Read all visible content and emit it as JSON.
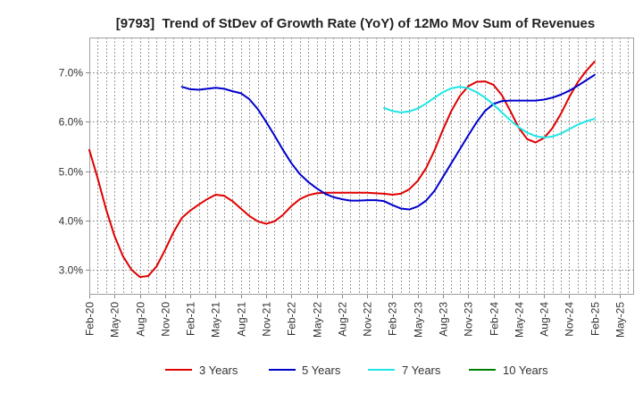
{
  "chart_data": {
    "type": "line",
    "title": "[9793]  Trend of StDev of Growth Rate (YoY) of 12Mo Mov Sum of Revenues",
    "xlabel": "",
    "ylabel": "",
    "xlim": [
      0,
      64.7
    ],
    "ylim": [
      2.49,
      7.71
    ],
    "grid": true,
    "legend_position": "bottom",
    "x_ticks": [
      {
        "month": 0,
        "label": "Feb-20"
      },
      {
        "month": 3,
        "label": "May-20"
      },
      {
        "month": 6,
        "label": "Aug-20"
      },
      {
        "month": 9,
        "label": "Nov-20"
      },
      {
        "month": 12,
        "label": "Feb-21"
      },
      {
        "month": 15,
        "label": "May-21"
      },
      {
        "month": 18,
        "label": "Aug-21"
      },
      {
        "month": 21,
        "label": "Nov-21"
      },
      {
        "month": 24,
        "label": "Feb-22"
      },
      {
        "month": 27,
        "label": "May-22"
      },
      {
        "month": 30,
        "label": "Aug-22"
      },
      {
        "month": 33,
        "label": "Nov-22"
      },
      {
        "month": 36,
        "label": "Feb-23"
      },
      {
        "month": 39,
        "label": "May-23"
      },
      {
        "month": 42,
        "label": "Aug-23"
      },
      {
        "month": 45,
        "label": "Nov-23"
      },
      {
        "month": 48,
        "label": "Feb-24"
      },
      {
        "month": 51,
        "label": "May-24"
      },
      {
        "month": 54,
        "label": "Aug-24"
      },
      {
        "month": 57,
        "label": "Nov-24"
      },
      {
        "month": 60,
        "label": "Feb-25"
      },
      {
        "month": 63,
        "label": "May-25"
      }
    ],
    "y_ticks": [
      {
        "value": 3,
        "label": "3.0%"
      },
      {
        "value": 4,
        "label": "4.0%"
      },
      {
        "value": 5,
        "label": "5.0%"
      },
      {
        "value": 6,
        "label": "6.0%"
      },
      {
        "value": 7,
        "label": "7.0%"
      }
    ],
    "series": [
      {
        "name": "3 Years",
        "color": "#e00000",
        "start_month": 0,
        "values": [
          5.43,
          4.85,
          4.22,
          3.68,
          3.27,
          3.0,
          2.85,
          2.87,
          3.07,
          3.4,
          3.76,
          4.05,
          4.2,
          4.32,
          4.43,
          4.52,
          4.5,
          4.39,
          4.24,
          4.09,
          3.98,
          3.93,
          3.98,
          4.11,
          4.29,
          4.43,
          4.51,
          4.55,
          4.56,
          4.56,
          4.56,
          4.56,
          4.56,
          4.56,
          4.55,
          4.54,
          4.52,
          4.54,
          4.63,
          4.8,
          5.06,
          5.42,
          5.84,
          6.22,
          6.52,
          6.72,
          6.81,
          6.82,
          6.75,
          6.54,
          6.22,
          5.88,
          5.65,
          5.58,
          5.67,
          5.87,
          6.16,
          6.5,
          6.8,
          7.03,
          7.22
        ]
      },
      {
        "name": "5 Years",
        "color": "#0000cc",
        "start_month": 11,
        "values": [
          6.71,
          6.66,
          6.65,
          6.67,
          6.69,
          6.67,
          6.62,
          6.58,
          6.46,
          6.26,
          6.0,
          5.72,
          5.43,
          5.16,
          4.94,
          4.78,
          4.65,
          4.54,
          4.47,
          4.43,
          4.4,
          4.4,
          4.41,
          4.41,
          4.39,
          4.31,
          4.24,
          4.22,
          4.28,
          4.4,
          4.6,
          4.88,
          5.16,
          5.44,
          5.72,
          5.99,
          6.22,
          6.36,
          6.42,
          6.43,
          6.43,
          6.43,
          6.43,
          6.45,
          6.49,
          6.55,
          6.63,
          6.73,
          6.84,
          6.95
        ]
      },
      {
        "name": "7 Years",
        "color": "#1ee6e6",
        "start_month": 35,
        "values": [
          6.28,
          6.22,
          6.19,
          6.21,
          6.27,
          6.37,
          6.49,
          6.6,
          6.68,
          6.71,
          6.68,
          6.6,
          6.49,
          6.35,
          6.19,
          6.03,
          5.89,
          5.78,
          5.71,
          5.68,
          5.7,
          5.76,
          5.85,
          5.94,
          6.01,
          6.06
        ]
      },
      {
        "name": "10 Years",
        "color": "#008000",
        "start_month": null,
        "values": []
      }
    ]
  }
}
